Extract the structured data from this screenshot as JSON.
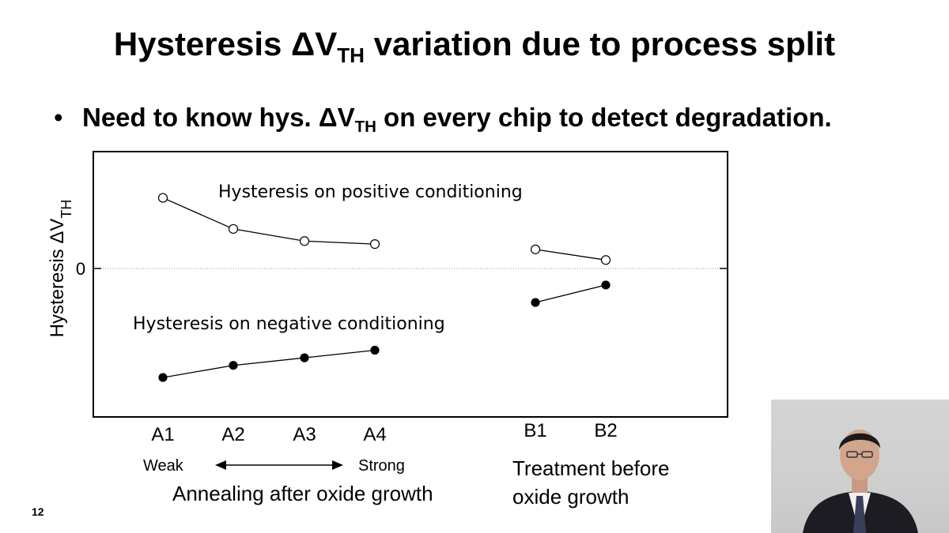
{
  "slide": {
    "title_prefix": "Hysteresis ΔV",
    "title_sub": "TH",
    "title_suffix": " variation due to process split",
    "bullet_prefix": "Need to know hys. ΔV",
    "bullet_sub": "TH",
    "bullet_suffix": " on every chip to detect degradation.",
    "page_number": "12"
  },
  "chart_data": {
    "type": "line",
    "categories": [
      "A1",
      "A2",
      "A3",
      "A4",
      "B1",
      "B2"
    ],
    "ylabel_prefix": "Hysteresis ΔV",
    "ylabel_sub": "TH",
    "y_zero_label": "0",
    "grid": false,
    "zero_line": true,
    "series": [
      {
        "name": "Hysteresis on positive conditioning",
        "marker": "open-circle",
        "groups": [
          {
            "x": [
              "A1",
              "A2",
              "A3",
              "A4"
            ],
            "y": [
              9.4,
              5.3,
              3.7,
              3.3
            ]
          },
          {
            "x": [
              "B1",
              "B2"
            ],
            "y": [
              2.6,
              1.2
            ]
          }
        ]
      },
      {
        "name": "Hysteresis on negative conditioning",
        "marker": "filled-circle",
        "groups": [
          {
            "x": [
              "A1",
              "A2",
              "A3",
              "A4"
            ],
            "y": [
              -14.3,
              -12.7,
              -11.7,
              -10.7
            ]
          },
          {
            "x": [
              "B1",
              "B2"
            ],
            "y": [
              -4.4,
              -2.1
            ]
          }
        ]
      }
    ],
    "ylim": [
      -19.5,
      15.5
    ],
    "annotations": {
      "weak_label": "Weak",
      "strong_label": "Strong",
      "group_a_caption": "Annealing after oxide growth",
      "group_b_caption_line1": "Treatment before",
      "group_b_caption_line2": "oxide growth"
    }
  },
  "presenter": {
    "description_icon": "presenter-video-icon"
  }
}
